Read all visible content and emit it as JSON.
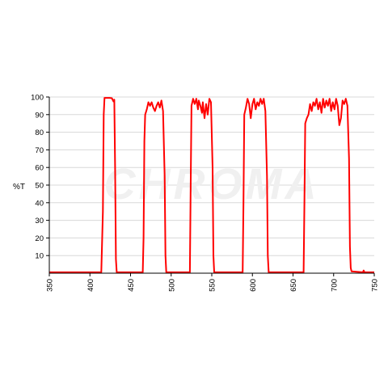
{
  "chart_data": {
    "type": "line",
    "ylabel": "%T",
    "xlabel": "",
    "xlim": [
      350,
      750
    ],
    "ylim": [
      0,
      100
    ],
    "x_ticks": [
      350,
      400,
      450,
      500,
      550,
      600,
      650,
      700,
      750
    ],
    "y_ticks": [
      10,
      20,
      30,
      40,
      50,
      60,
      70,
      80,
      90,
      100
    ],
    "grid": "horizontal",
    "watermark": "CHROMA",
    "series": [
      {
        "color": "#ff0000",
        "points": [
          [
            350,
            0.5
          ],
          [
            414,
            0.5
          ],
          [
            416,
            35
          ],
          [
            417,
            90
          ],
          [
            418,
            99.5
          ],
          [
            424,
            99.5
          ],
          [
            427,
            99.3
          ],
          [
            429,
            97.5
          ],
          [
            430,
            98.5
          ],
          [
            431,
            60
          ],
          [
            432,
            8
          ],
          [
            433,
            0.5
          ],
          [
            465,
            0.5
          ],
          [
            466,
            20
          ],
          [
            467,
            75
          ],
          [
            468,
            90
          ],
          [
            470,
            93
          ],
          [
            472,
            97
          ],
          [
            474,
            95
          ],
          [
            476,
            97
          ],
          [
            478,
            94
          ],
          [
            480,
            92
          ],
          [
            482,
            95
          ],
          [
            484,
            97
          ],
          [
            486,
            94
          ],
          [
            488,
            98
          ],
          [
            490,
            92
          ],
          [
            492,
            55
          ],
          [
            493,
            10
          ],
          [
            494,
            0.5
          ],
          [
            523,
            0.5
          ],
          [
            524,
            50
          ],
          [
            525,
            95
          ],
          [
            527,
            99
          ],
          [
            529,
            96
          ],
          [
            531,
            99
          ],
          [
            533,
            93
          ],
          [
            534,
            98
          ],
          [
            536,
            95
          ],
          [
            538,
            91
          ],
          [
            539,
            97
          ],
          [
            541,
            88
          ],
          [
            543,
            96
          ],
          [
            545,
            90
          ],
          [
            547,
            99
          ],
          [
            549,
            97
          ],
          [
            551,
            60
          ],
          [
            552,
            10
          ],
          [
            553,
            0.5
          ],
          [
            588,
            0.5
          ],
          [
            589,
            40
          ],
          [
            590,
            90
          ],
          [
            592,
            94
          ],
          [
            594,
            99
          ],
          [
            596,
            96
          ],
          [
            598,
            88
          ],
          [
            600,
            96
          ],
          [
            602,
            99
          ],
          [
            604,
            93
          ],
          [
            606,
            97
          ],
          [
            608,
            95
          ],
          [
            610,
            99
          ],
          [
            612,
            96
          ],
          [
            614,
            99
          ],
          [
            616,
            92
          ],
          [
            618,
            55
          ],
          [
            619,
            10
          ],
          [
            620,
            0.5
          ],
          [
            663,
            0.5
          ],
          [
            664,
            40
          ],
          [
            665,
            85
          ],
          [
            667,
            88
          ],
          [
            669,
            90
          ],
          [
            671,
            96
          ],
          [
            673,
            92
          ],
          [
            675,
            97
          ],
          [
            677,
            95
          ],
          [
            679,
            99
          ],
          [
            681,
            93
          ],
          [
            683,
            97
          ],
          [
            685,
            91
          ],
          [
            687,
            99
          ],
          [
            689,
            94
          ],
          [
            691,
            98
          ],
          [
            693,
            95
          ],
          [
            695,
            99
          ],
          [
            697,
            92
          ],
          [
            699,
            97
          ],
          [
            701,
            93
          ],
          [
            703,
            99
          ],
          [
            705,
            95
          ],
          [
            707,
            84
          ],
          [
            709,
            88
          ],
          [
            711,
            98
          ],
          [
            713,
            96
          ],
          [
            715,
            99
          ],
          [
            717,
            95
          ],
          [
            719,
            65
          ],
          [
            720,
            15
          ],
          [
            721,
            3
          ],
          [
            722,
            1
          ],
          [
            736,
            0.5
          ],
          [
            737,
            1.5
          ],
          [
            738,
            0.5
          ],
          [
            750,
            0.5
          ]
        ]
      }
    ]
  }
}
